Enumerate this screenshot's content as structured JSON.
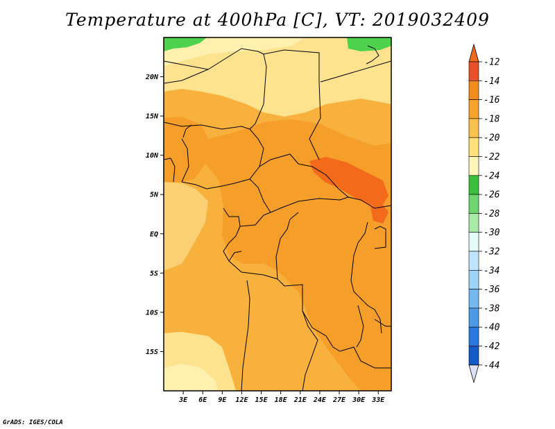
{
  "title": "Temperature at 400hPa [C], VT: 2019032409",
  "credit": "GrADS: IGES/COLA",
  "map": {
    "region": "Central Africa",
    "lat_range": [
      -20,
      25
    ],
    "lon_range": [
      0,
      35
    ],
    "lat_ticks": [
      {
        "value": 20,
        "label": "20N"
      },
      {
        "value": 15,
        "label": "15N"
      },
      {
        "value": 10,
        "label": "10N"
      },
      {
        "value": 5,
        "label": "5N"
      },
      {
        "value": 0,
        "label": "EQ"
      },
      {
        "value": -5,
        "label": "5S"
      },
      {
        "value": -10,
        "label": "10S"
      },
      {
        "value": -15,
        "label": "15S"
      }
    ],
    "lon_ticks": [
      {
        "value": 3,
        "label": "3E"
      },
      {
        "value": 6,
        "label": "6E"
      },
      {
        "value": 9,
        "label": "9E"
      },
      {
        "value": 12,
        "label": "12E"
      },
      {
        "value": 15,
        "label": "15E"
      },
      {
        "value": 18,
        "label": "18E"
      },
      {
        "value": 21,
        "label": "21E"
      },
      {
        "value": 24,
        "label": "24E"
      },
      {
        "value": 27,
        "label": "27E"
      },
      {
        "value": 30,
        "label": "30E"
      },
      {
        "value": 33,
        "label": "33E"
      }
    ]
  },
  "colorbar": {
    "levels": [
      "-12",
      "-14",
      "-16",
      "-18",
      "-20",
      "-22",
      "-24",
      "-26",
      "-28",
      "-30",
      "-32",
      "-34",
      "-36",
      "-38",
      "-40",
      "-42",
      "-44"
    ],
    "colors": [
      "#e8502a",
      "#f28c1c",
      "#f5a52e",
      "#f9c24f",
      "#fde17a",
      "#fff5b8",
      "#3cbf3c",
      "#6ed66e",
      "#a8eba8",
      "#e4fbf7",
      "#bfe4fb",
      "#9dd2f9",
      "#74b8f0",
      "#4c9ae6",
      "#2b78dc",
      "#135bc7",
      "#0a2c96"
    ],
    "top_color": "#f06a1a",
    "bottom_color": "#dde0f6"
  },
  "field_colors": {
    "c12": "#f26a1a",
    "c14": "#f59e2a",
    "c16": "#f8b13d",
    "c18": "#fbd074",
    "c20": "#fde38e",
    "c22": "#fff0b0",
    "green": "#4cd24c"
  }
}
